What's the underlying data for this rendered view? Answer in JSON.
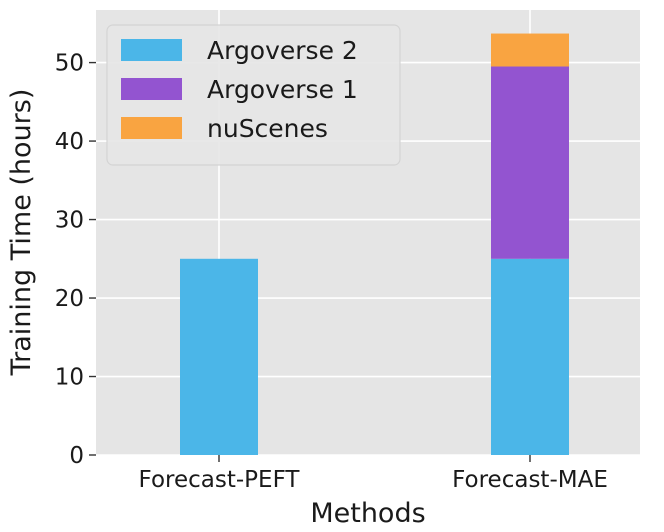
{
  "chart_data": {
    "type": "bar",
    "stacked": true,
    "categories": [
      "Forecast-PEFT",
      "Forecast-MAE"
    ],
    "series": [
      {
        "name": "Argoverse 2",
        "values": [
          25,
          25
        ],
        "color": "#4bb6e8"
      },
      {
        "name": "Argoverse 1",
        "values": [
          0,
          24.5
        ],
        "color": "#9354d0"
      },
      {
        "name": "nuScenes",
        "values": [
          0,
          4.2
        ],
        "color": "#f9a441"
      }
    ],
    "title": "",
    "xlabel": "Methods",
    "ylabel": "Training Time (hours)",
    "ylim": [
      0,
      56.7
    ],
    "yticks": [
      0,
      10,
      20,
      30,
      40,
      50
    ],
    "grid": true,
    "background": "#e5e5e5",
    "legend_position": "upper-left"
  }
}
